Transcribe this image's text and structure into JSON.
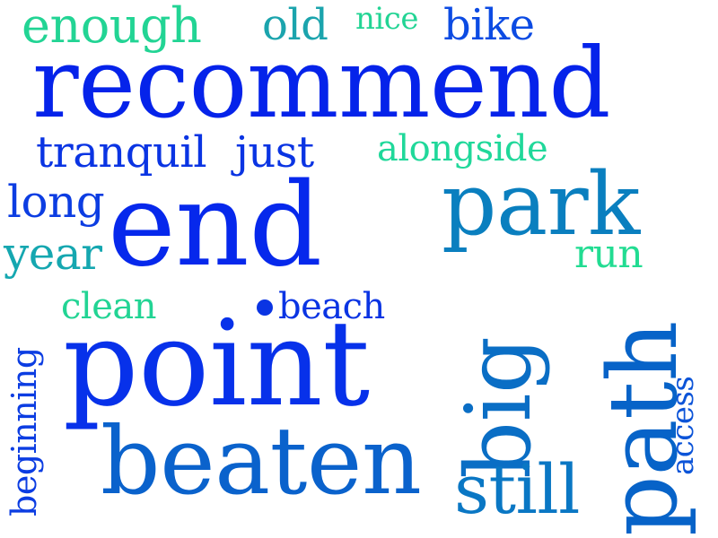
{
  "words": {
    "enough": {
      "text": "enough",
      "color": "#22d494"
    },
    "old": {
      "text": "old",
      "color": "#1ba4ad"
    },
    "nice": {
      "text": "nice",
      "color": "#22d494"
    },
    "bike": {
      "text": "bike",
      "color": "#0c4be3"
    },
    "recommend": {
      "text": "recommend",
      "color": "#0523ea"
    },
    "tranquil": {
      "text": "tranquil",
      "color": "#0a34e3"
    },
    "just": {
      "text": "just",
      "color": "#0a34e3"
    },
    "alongside": {
      "text": "alongside",
      "color": "#20d89a"
    },
    "park": {
      "text": "park",
      "color": "#0a7fbf"
    },
    "long": {
      "text": "long",
      "color": "#0c3de2"
    },
    "end": {
      "text": "end",
      "color": "#0628ec"
    },
    "year": {
      "text": "year",
      "color": "#15a7b0"
    },
    "run": {
      "text": "run",
      "color": "#22dc92"
    },
    "clean": {
      "text": "clean",
      "color": "#22d494"
    },
    "dot": {
      "color": "#0a34e3"
    },
    "beach": {
      "text": "beach",
      "color": "#0a34e3"
    },
    "point": {
      "text": "point",
      "color": "#0731ea"
    },
    "beginning": {
      "text": "beginning",
      "color": "#0c3de2"
    },
    "big": {
      "text": "big",
      "color": "#0a6ec5"
    },
    "path": {
      "text": "path",
      "color": "#0763c8"
    },
    "access": {
      "text": "access",
      "color": "#0c54d8"
    },
    "beaten": {
      "text": "beaten",
      "color": "#0a62cc"
    },
    "still": {
      "text": "still",
      "color": "#0a77c4"
    }
  }
}
